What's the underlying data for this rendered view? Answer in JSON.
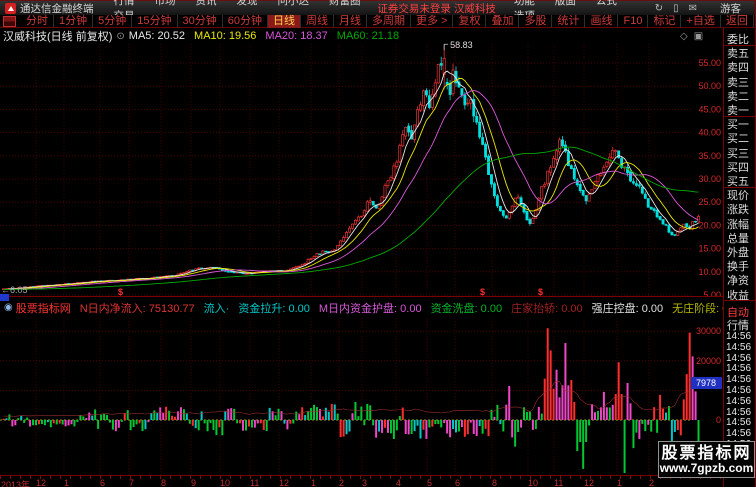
{
  "app": {
    "logo_title": "通达信金融终端",
    "menus": [
      "行情",
      "市场",
      "资讯",
      "发现",
      "问小达",
      "财富圈",
      "交易"
    ],
    "login_status": "证券交易未登录 汉威科技",
    "right_menus": [
      "功能",
      "版面",
      "公式",
      "选项"
    ],
    "guest_label": "游客"
  },
  "toolbar": {
    "periods": [
      "分时",
      "1分钟",
      "5分钟",
      "15分钟",
      "30分钟",
      "60分钟",
      "日线",
      "周线",
      "月线",
      "多周期",
      "更多 >"
    ],
    "active_period": "日线",
    "tools": [
      "复权",
      "叠加",
      "多股",
      "统计",
      "画线",
      "F10",
      "标记",
      "+自选",
      "返回"
    ],
    "r_badge": "R"
  },
  "chart_header": {
    "title": "汉威科技(日线 前复权)",
    "ma_values": [
      {
        "label": "MA5:",
        "value": "20.52",
        "color": "#e8e8e8"
      },
      {
        "label": "MA10:",
        "value": "19.56",
        "color": "#e8e800"
      },
      {
        "label": "MA20:",
        "value": "18.37",
        "color": "#d858d8"
      },
      {
        "label": "MA60:",
        "value": "21.18",
        "color": "#00aa00"
      }
    ]
  },
  "indicator_header": {
    "brand": "股票指标网",
    "fields": [
      {
        "label": "N日内净流入:",
        "value": "75130.77",
        "color": "#e03232"
      },
      {
        "label": "流入·",
        "value": "",
        "color": "#00c8c8"
      },
      {
        "label": "资金拉升:",
        "value": "0.00",
        "color": "#00c8c8"
      },
      {
        "label": "M日内资金护盘:",
        "value": "0.00",
        "color": "#d858d8"
      },
      {
        "label": "资金洗盘:",
        "value": "0.00",
        "color": "#00b428"
      },
      {
        "label": "庄家抬轿:",
        "value": "0.00",
        "color": "#a02020"
      },
      {
        "label": "强庄控盘:",
        "value": "0.00",
        "color": "#e0e0e0"
      },
      {
        "label": "无庄阶段:",
        "value": "0.00",
        "color": "#b8b800"
      }
    ]
  },
  "sidebar": {
    "rows": [
      "委比",
      "卖五",
      "卖四",
      "卖三",
      "卖二",
      "卖一",
      "买一",
      "买二",
      "买三",
      "买四",
      "买五",
      "现价",
      "涨跌",
      "涨幅",
      "总量",
      "外盘",
      "换手",
      "净资",
      "收益"
    ],
    "tabs": [
      {
        "label": "自动",
        "color": "#ff4040"
      },
      {
        "label": "行情",
        "color": "#e0e0e0"
      }
    ],
    "times": [
      "14:56",
      "14:56",
      "14:56",
      "14:56",
      "14:56",
      "14:56",
      "14:56",
      "14:56",
      "14:56",
      "14:56",
      "14:56"
    ]
  },
  "watermark": {
    "line1": "股票指标网",
    "line2": "www.7gpzb.com"
  },
  "chart_data": {
    "type": "candlestick+histogram",
    "title": "汉威科技(日线 前复权)",
    "high_annotation": "58.83",
    "low_annotation": "←6.05",
    "price_axis_ticks": [
      5,
      10,
      15,
      20,
      25,
      30,
      35,
      40,
      45,
      50,
      55
    ],
    "num_candles": 236,
    "price_keyframes": [
      [
        0,
        6.2
      ],
      [
        30,
        6.8
      ],
      [
        60,
        7.3
      ],
      [
        90,
        7.9
      ],
      [
        120,
        8.2
      ],
      [
        150,
        8.7
      ],
      [
        175,
        9.3
      ],
      [
        195,
        10.6
      ],
      [
        212,
        11.1
      ],
      [
        228,
        10.0
      ],
      [
        248,
        9.6
      ],
      [
        268,
        10.3
      ],
      [
        285,
        10.1
      ],
      [
        300,
        11.4
      ],
      [
        315,
        13.4
      ],
      [
        325,
        14.8
      ],
      [
        332,
        14.2
      ],
      [
        345,
        18.0
      ],
      [
        360,
        22.0
      ],
      [
        370,
        25.5
      ],
      [
        376,
        23.5
      ],
      [
        388,
        29.5
      ],
      [
        398,
        35.0
      ],
      [
        406,
        41.0
      ],
      [
        411,
        38.5
      ],
      [
        419,
        46.0
      ],
      [
        426,
        49.5
      ],
      [
        430,
        45.5
      ],
      [
        436,
        53.0
      ],
      [
        440,
        57.5
      ],
      [
        444,
        52.0
      ],
      [
        449,
        47.5
      ],
      [
        454,
        53.5
      ],
      [
        459,
        50.0
      ],
      [
        464,
        45.0
      ],
      [
        469,
        48.0
      ],
      [
        474,
        44.0
      ],
      [
        479,
        40.0
      ],
      [
        484,
        35.5
      ],
      [
        490,
        29.5
      ],
      [
        496,
        25.5
      ],
      [
        501,
        22.5
      ],
      [
        506,
        21.0
      ],
      [
        511,
        24.0
      ],
      [
        516,
        26.5
      ],
      [
        521,
        24.5
      ],
      [
        526,
        21.5
      ],
      [
        531,
        20.5
      ],
      [
        537,
        24.5
      ],
      [
        543,
        28.5
      ],
      [
        549,
        32.0
      ],
      [
        555,
        35.5
      ],
      [
        560,
        38.0
      ],
      [
        565,
        35.5
      ],
      [
        570,
        33.0
      ],
      [
        576,
        30.0
      ],
      [
        581,
        27.5
      ],
      [
        586,
        25.5
      ],
      [
        591,
        27.0
      ],
      [
        597,
        30.0
      ],
      [
        603,
        33.0
      ],
      [
        608,
        35.0
      ],
      [
        613,
        36.0
      ],
      [
        618,
        34.5
      ],
      [
        623,
        32.5
      ],
      [
        628,
        31.0
      ],
      [
        634,
        29.5
      ],
      [
        640,
        27.5
      ],
      [
        646,
        25.0
      ],
      [
        652,
        23.5
      ],
      [
        658,
        22.0
      ],
      [
        663,
        20.5
      ],
      [
        668,
        19.0
      ],
      [
        674,
        17.8
      ],
      [
        679,
        18.8
      ],
      [
        684,
        20.5
      ],
      [
        689,
        19.5
      ],
      [
        694,
        20.8
      ],
      [
        700,
        22.3
      ]
    ],
    "ma_lines": [
      {
        "period": 5,
        "color": "#e8e8e8"
      },
      {
        "period": 10,
        "color": "#e8e800"
      },
      {
        "period": 20,
        "color": "#d858d8"
      },
      {
        "period": 60,
        "color": "#00aa00"
      }
    ],
    "candle_colors": {
      "up": "#ee3232",
      "down": "#00dede"
    },
    "dollar_marks": [
      118,
      480,
      538
    ],
    "flow_axis_ticks": [
      30000,
      20000,
      0
    ],
    "flow_grid_values": [
      30000,
      20000,
      10000
    ],
    "flow_last_value": "7978",
    "flow_colors": {
      "r": "#ff2e2e",
      "g": "#00c832",
      "m": "#f046c8",
      "c": "#00c8c8"
    },
    "flow_amp_keyframes": [
      [
        0,
        2200
      ],
      [
        60,
        3000
      ],
      [
        120,
        4000
      ],
      [
        180,
        5200
      ],
      [
        230,
        5200
      ],
      [
        260,
        4000
      ],
      [
        300,
        5000
      ],
      [
        360,
        6200
      ],
      [
        420,
        6800
      ],
      [
        470,
        5800
      ],
      [
        505,
        6500
      ],
      [
        530,
        5000
      ],
      [
        600,
        5500
      ],
      [
        640,
        6500
      ],
      [
        702,
        7000
      ]
    ],
    "flow_spikes": [
      [
        508,
        11500,
        "m"
      ],
      [
        514,
        -9000,
        "g"
      ],
      [
        548,
        31000,
        "r"
      ],
      [
        552,
        23500,
        "r"
      ],
      [
        557,
        17000,
        "m"
      ],
      [
        566,
        26000,
        "m"
      ],
      [
        571,
        13500,
        "r"
      ],
      [
        578,
        -10500,
        "g"
      ],
      [
        584,
        -16500,
        "g"
      ],
      [
        603,
        9500,
        "m"
      ],
      [
        619,
        19500,
        "r"
      ],
      [
        624,
        -18000,
        "g"
      ],
      [
        628,
        12500,
        "m"
      ],
      [
        634,
        -9500,
        "g"
      ],
      [
        660,
        8500,
        "r"
      ],
      [
        672,
        -9000,
        "c"
      ],
      [
        686,
        15500,
        "r"
      ],
      [
        691,
        29500,
        "r"
      ],
      [
        694,
        21500,
        "m"
      ],
      [
        698,
        -17500,
        "g"
      ],
      [
        701,
        -12500,
        "g"
      ]
    ],
    "x_labels": [
      [
        "2013年",
        1
      ],
      [
        "12",
        36
      ],
      [
        "1",
        64
      ],
      [
        "6",
        100
      ],
      [
        "7",
        129
      ],
      [
        "8",
        161
      ],
      [
        "9",
        191
      ],
      [
        "10",
        220
      ],
      [
        "11",
        250
      ],
      [
        "12",
        279
      ],
      [
        "1",
        311
      ],
      [
        "2",
        339
      ],
      [
        "3",
        362
      ],
      [
        "4",
        396
      ],
      [
        "5",
        427
      ],
      [
        "6",
        455
      ],
      [
        "8",
        492
      ],
      [
        "10",
        528
      ],
      [
        "11",
        554
      ],
      [
        "12",
        584
      ],
      [
        "1",
        617
      ],
      [
        "2",
        649
      ]
    ]
  }
}
